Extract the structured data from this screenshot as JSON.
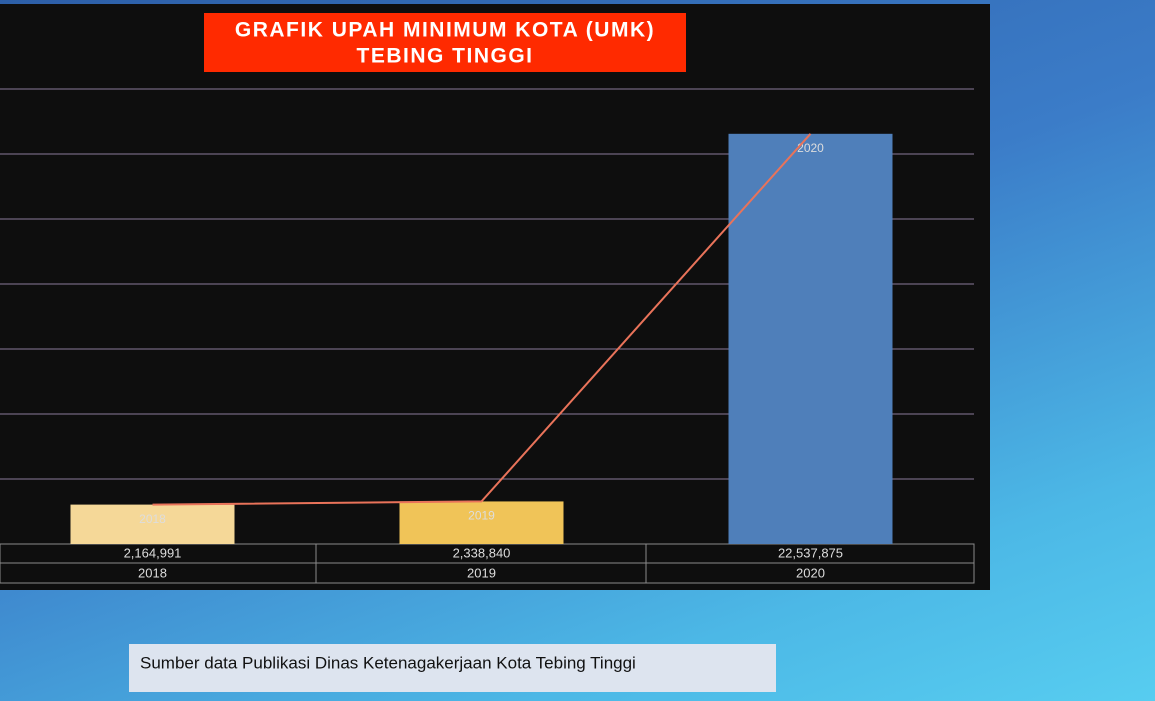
{
  "chart_data": {
    "type": "bar",
    "title": [
      "GRAFIK UPAH MINIMUM KOTA (UMK)",
      "TEBING TINGGI"
    ],
    "categories": [
      "2018",
      "2019",
      "2020"
    ],
    "values": [
      2164991,
      2338840,
      22537875
    ],
    "value_labels": [
      "2,164,991",
      "2,338,840",
      "22,537,875"
    ],
    "colors": [
      "#f5d898",
      "#f0c458",
      "#4f7fba"
    ],
    "line_color": "#e9735a",
    "ylim": [
      0,
      25000000
    ],
    "source": "Sumber data Publikasi Dinas Ketenagakerjaan Kota Tebing Tinggi"
  }
}
